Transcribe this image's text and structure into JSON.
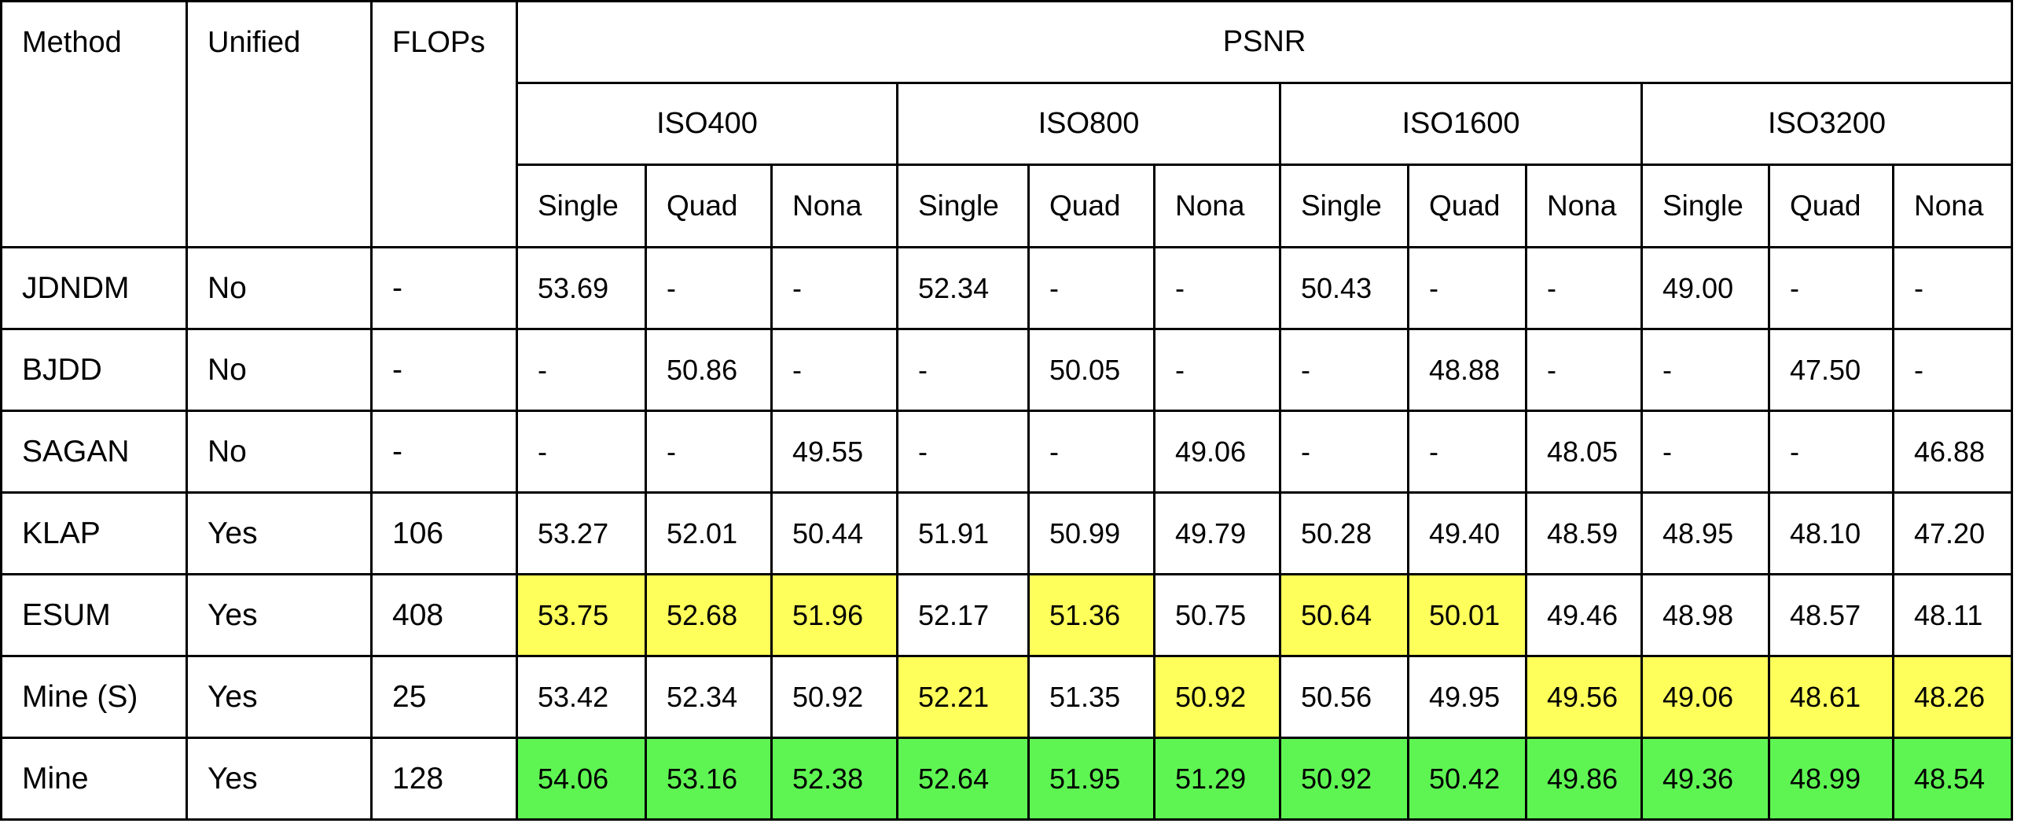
{
  "headers": {
    "method": "Method",
    "unified": "Unified",
    "flops": "FLOPs",
    "metric": "PSNR",
    "iso_groups": [
      "ISO400",
      "ISO800",
      "ISO1600",
      "ISO3200"
    ],
    "patterns": [
      "Single",
      "Quad",
      "Nona"
    ]
  },
  "colors": {
    "best": "#5ef553",
    "second": "#ffff5b"
  },
  "rows": [
    {
      "method": "JDNDM",
      "unified": "No",
      "flops": "-",
      "values": [
        "53.69",
        "-",
        "-",
        "52.34",
        "-",
        "-",
        "50.43",
        "-",
        "-",
        "49.00",
        "-",
        "-"
      ],
      "highlight": [
        "",
        "",
        "",
        "",
        "",
        "",
        "",
        "",
        "",
        "",
        "",
        ""
      ]
    },
    {
      "method": "BJDD",
      "unified": "No",
      "flops": "-",
      "values": [
        "-",
        "50.86",
        "-",
        "-",
        "50.05",
        "-",
        "-",
        "48.88",
        "-",
        "-",
        "47.50",
        "-"
      ],
      "highlight": [
        "",
        "",
        "",
        "",
        "",
        "",
        "",
        "",
        "",
        "",
        "",
        ""
      ]
    },
    {
      "method": "SAGAN",
      "unified": "No",
      "flops": "-",
      "values": [
        "-",
        "-",
        "49.55",
        "-",
        "-",
        "49.06",
        "-",
        "-",
        "48.05",
        "-",
        "-",
        "46.88"
      ],
      "highlight": [
        "",
        "",
        "",
        "",
        "",
        "",
        "",
        "",
        "",
        "",
        "",
        ""
      ]
    },
    {
      "method": "KLAP",
      "unified": "Yes",
      "flops": "106",
      "values": [
        "53.27",
        "52.01",
        "50.44",
        "51.91",
        "50.99",
        "49.79",
        "50.28",
        "49.40",
        "48.59",
        "48.95",
        "48.10",
        "47.20"
      ],
      "highlight": [
        "",
        "",
        "",
        "",
        "",
        "",
        "",
        "",
        "",
        "",
        "",
        ""
      ]
    },
    {
      "method": "ESUM",
      "unified": "Yes",
      "flops": "408",
      "values": [
        "53.75",
        "52.68",
        "51.96",
        "52.17",
        "51.36",
        "50.75",
        "50.64",
        "50.01",
        "49.46",
        "48.98",
        "48.57",
        "48.11"
      ],
      "highlight": [
        "yellow",
        "yellow",
        "yellow",
        "",
        "yellow",
        "",
        "yellow",
        "yellow",
        "",
        "",
        "",
        ""
      ]
    },
    {
      "method": "Mine (S)",
      "unified": "Yes",
      "flops": "25",
      "values": [
        "53.42",
        "52.34",
        "50.92",
        "52.21",
        "51.35",
        "50.92",
        "50.56",
        "49.95",
        "49.56",
        "49.06",
        "48.61",
        "48.26"
      ],
      "highlight": [
        "",
        "",
        "",
        "yellow",
        "",
        "yellow",
        "",
        "",
        "yellow",
        "yellow",
        "yellow",
        "yellow"
      ]
    },
    {
      "method": "Mine",
      "unified": "Yes",
      "flops": "128",
      "values": [
        "54.06",
        "53.16",
        "52.38",
        "52.64",
        "51.95",
        "51.29",
        "50.92",
        "50.42",
        "49.86",
        "49.36",
        "48.99",
        "48.54"
      ],
      "highlight": [
        "green",
        "green",
        "green",
        "green",
        "green",
        "green",
        "green",
        "green",
        "green",
        "green",
        "green",
        "green"
      ]
    }
  ]
}
